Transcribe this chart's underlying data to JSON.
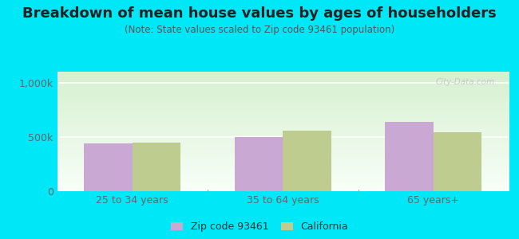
{
  "title": "Breakdown of mean house values by ages of householders",
  "subtitle": "(Note: State values scaled to Zip code 93461 population)",
  "categories": [
    "25 to 34 years",
    "35 to 64 years",
    "65 years+"
  ],
  "zip_values": [
    440000,
    500000,
    640000
  ],
  "ca_values": [
    450000,
    560000,
    540000
  ],
  "ylim": [
    0,
    1100000
  ],
  "ytick_vals": [
    0,
    500000,
    1000000
  ],
  "ytick_labels": [
    "0",
    "500k",
    "1,000k"
  ],
  "zip_color": "#c9a8d4",
  "ca_color": "#bfcc90",
  "bg_top_color": "#d6f0d0",
  "bg_bottom_color": "#f8fff8",
  "outer_bg": "#00e8f8",
  "title_color": "#222222",
  "subtitle_color": "#555555",
  "tick_color": "#666666",
  "legend_zip_label": "Zip code 93461",
  "legend_ca_label": "California",
  "title_fontsize": 13,
  "subtitle_fontsize": 8.5,
  "bar_width": 0.32,
  "group_positions": [
    1,
    2,
    3
  ],
  "watermark": "City-Data.com"
}
